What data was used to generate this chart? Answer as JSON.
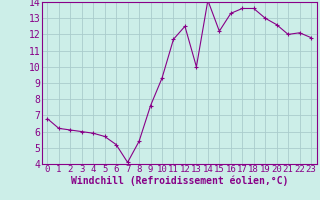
{
  "x": [
    0,
    1,
    2,
    3,
    4,
    5,
    6,
    7,
    8,
    9,
    10,
    11,
    12,
    13,
    14,
    15,
    16,
    17,
    18,
    19,
    20,
    21,
    22,
    23
  ],
  "y": [
    6.8,
    6.2,
    6.1,
    6.0,
    5.9,
    5.7,
    5.2,
    4.1,
    5.4,
    7.6,
    9.3,
    11.7,
    12.5,
    10.0,
    14.1,
    12.2,
    13.3,
    13.6,
    13.6,
    13.0,
    12.6,
    12.0,
    12.1,
    11.8
  ],
  "line_color": "#880088",
  "marker": ".",
  "marker_size": 3,
  "bg_color": "#cceee8",
  "grid_color": "#aacccc",
  "xlabel": "Windchill (Refroidissement éolien,°C)",
  "ylim": [
    4,
    14
  ],
  "xlim": [
    -0.5,
    23.5
  ],
  "tick_color": "#880088",
  "xlabel_color": "#880088",
  "xlabel_fontsize": 7,
  "tick_fontsize": 6.5,
  "ytick_fontsize": 7
}
